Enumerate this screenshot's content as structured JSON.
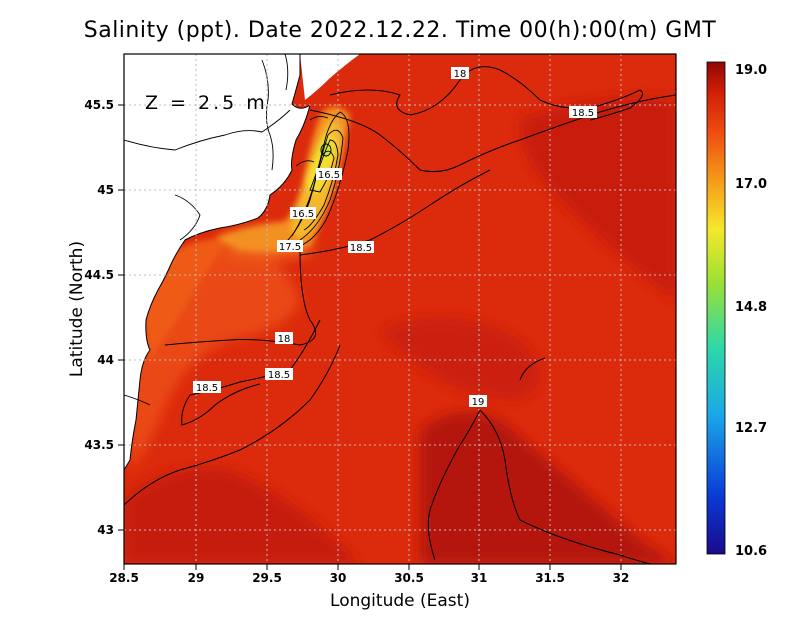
{
  "title": "Salinity (ppt). Date 2022.12.22. Time 00(h):00(m) GMT",
  "depth_label": "Z = 2.5 m",
  "x_axis": {
    "label": "Longitude (East)",
    "ticks": [
      "28.5",
      "29",
      "29.5",
      "30",
      "30.5",
      "31",
      "31.5",
      "32"
    ]
  },
  "y_axis": {
    "label": "Latitude (North)",
    "ticks": [
      "45.5",
      "45",
      "44.5",
      "44",
      "43.5",
      "43"
    ]
  },
  "colorbar": {
    "labels": [
      "19.0",
      "17.0",
      "14.8",
      "12.7",
      "10.6"
    ]
  },
  "contour_labels": [
    "18",
    "18.5",
    "16.5",
    "16.5",
    "17.5",
    "18.5",
    "18",
    "18.5",
    "18.5",
    "19"
  ],
  "colors": {
    "ocean_base": "#dc2a0c",
    "ocean_deep": "#aa0e06",
    "coastal_orange": "#f0641a",
    "plume_yellow": "#f5d52a",
    "land": "#ffffff"
  }
}
